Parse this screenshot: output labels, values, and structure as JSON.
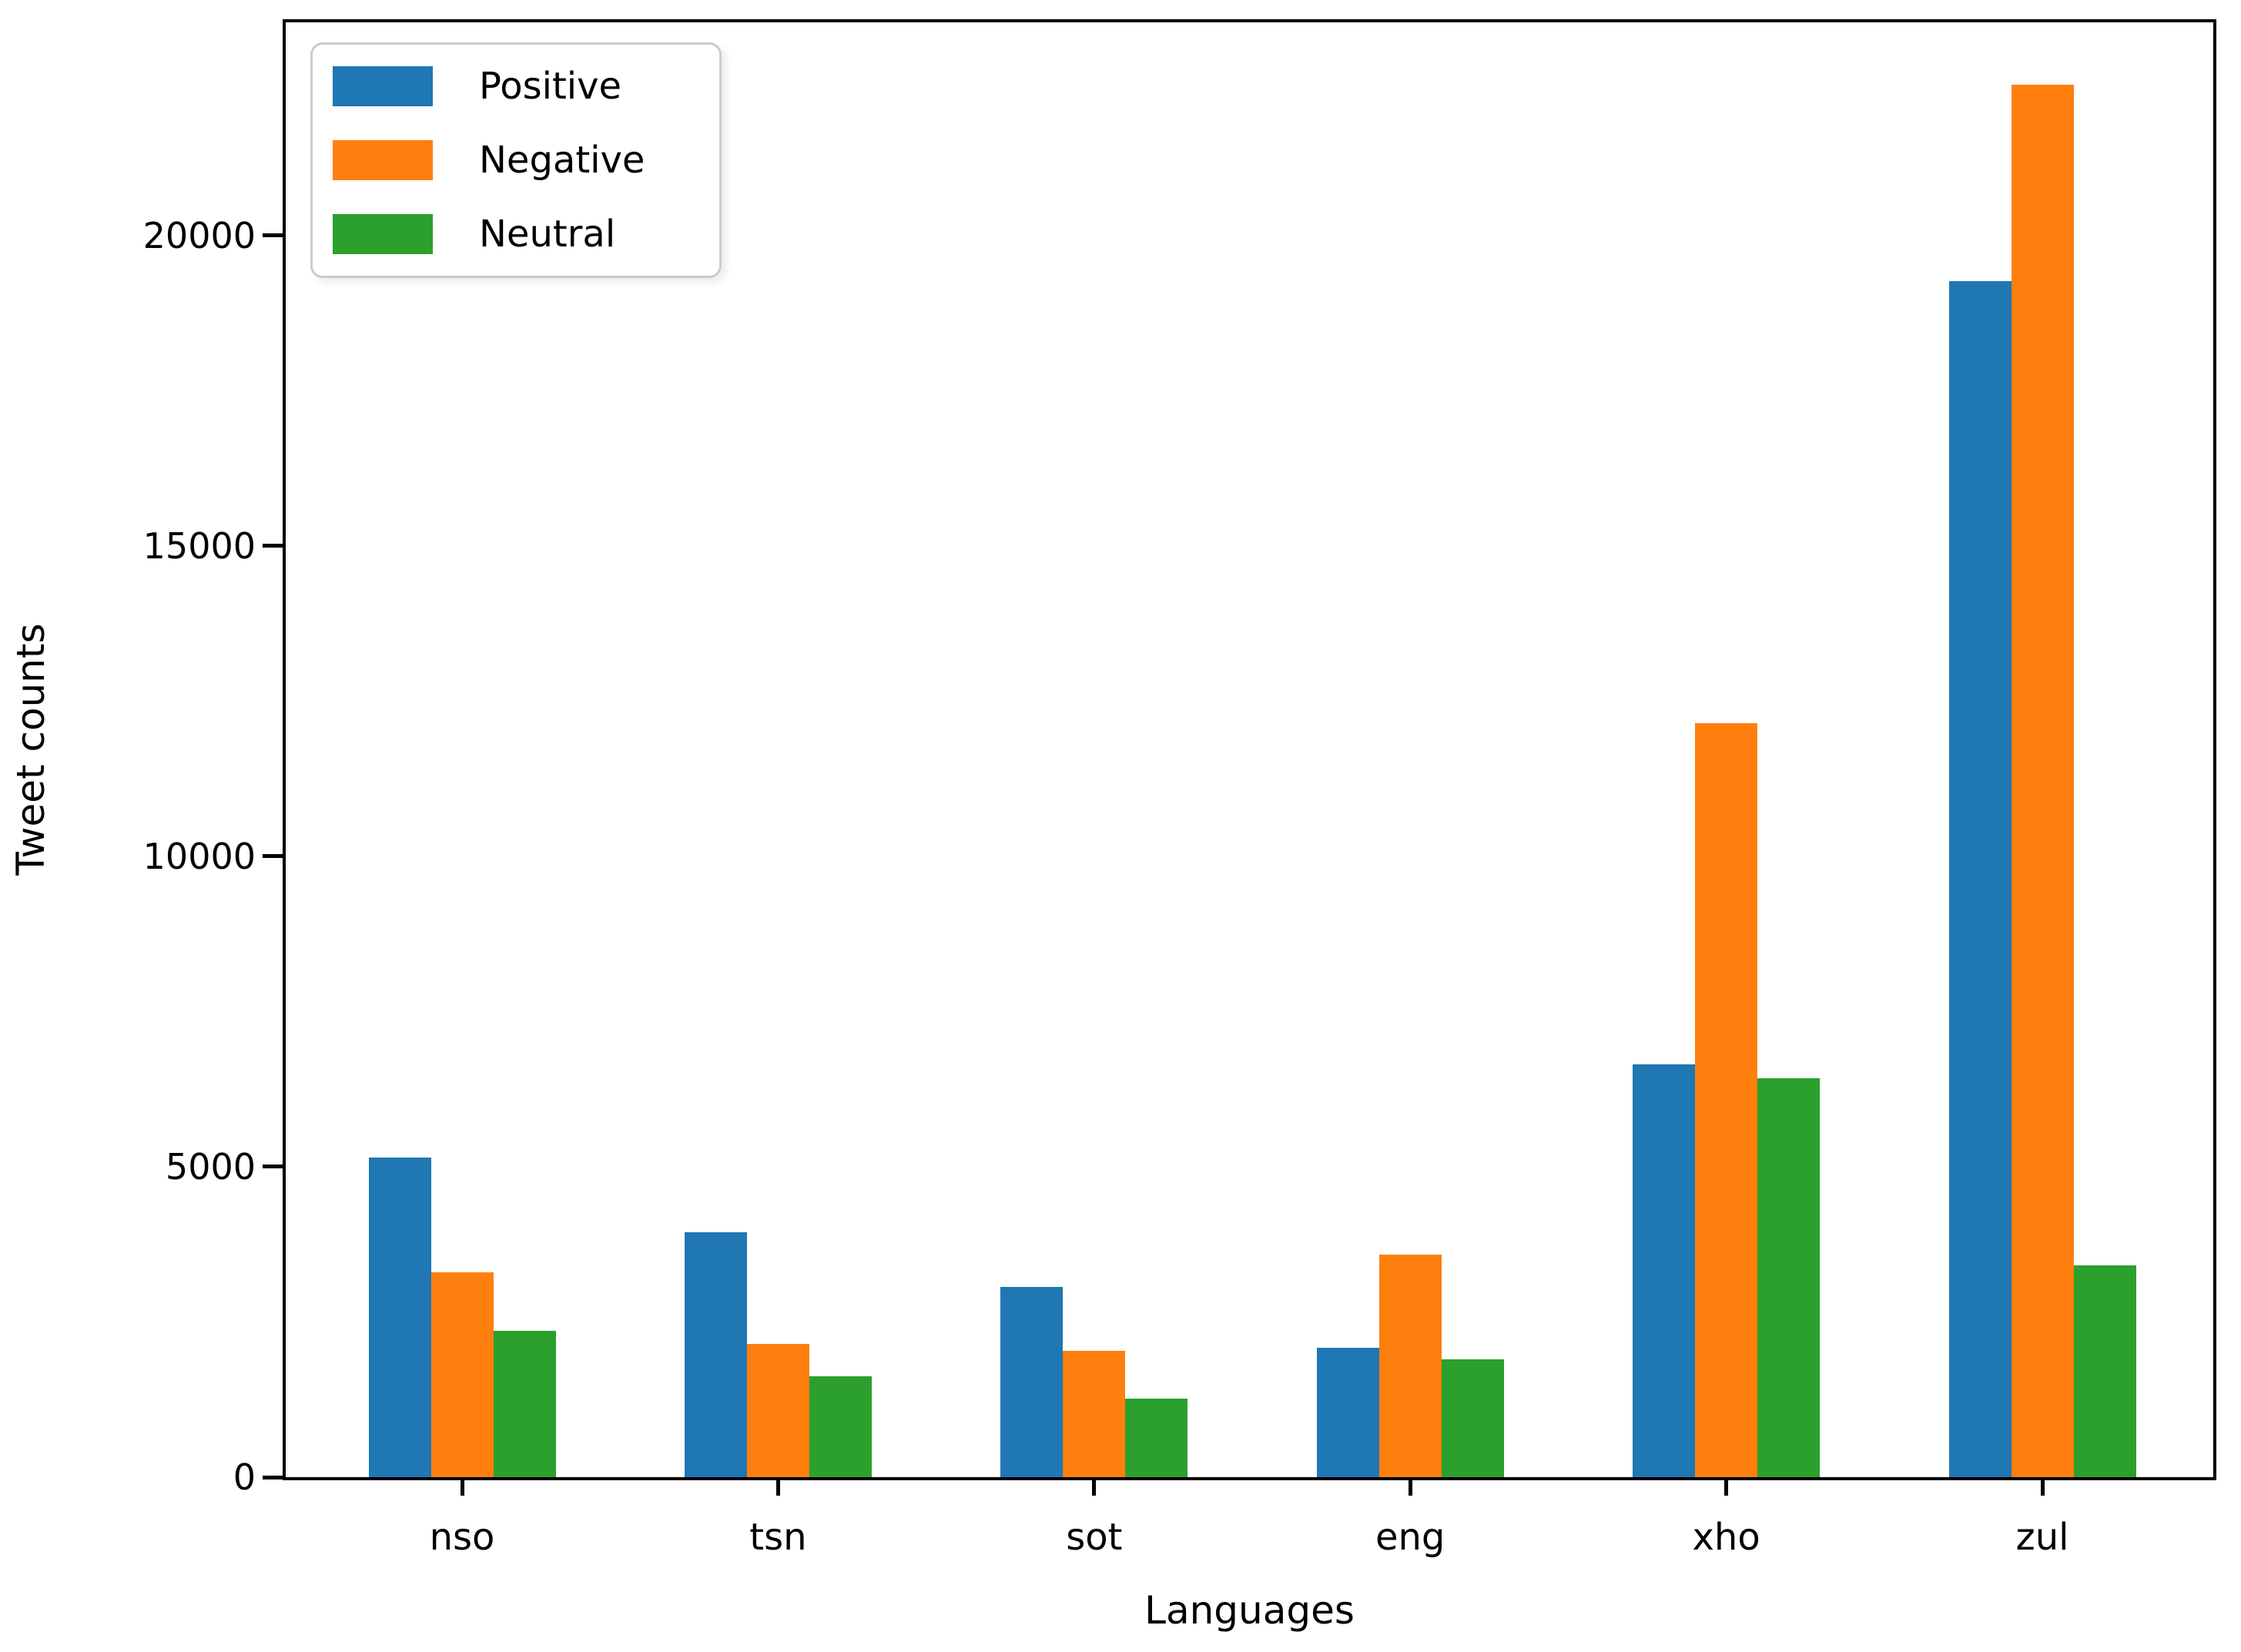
{
  "chart_data": {
    "type": "bar",
    "title": "",
    "xlabel": "Languages",
    "ylabel": "Tweet counts",
    "categories": [
      "nso",
      "tsn",
      "sot",
      "eng",
      "xho",
      "zul"
    ],
    "series": [
      {
        "name": "Positive",
        "color": "#1f77b4",
        "values": [
          5150,
          3940,
          3060,
          2080,
          6650,
          19260
        ]
      },
      {
        "name": "Negative",
        "color": "#ff7f0e",
        "values": [
          3300,
          2140,
          2030,
          3580,
          12140,
          22430
        ]
      },
      {
        "name": "Neutral",
        "color": "#2ca02c",
        "values": [
          2360,
          1620,
          1270,
          1900,
          6420,
          3410
        ]
      }
    ],
    "y_ticks": [
      0,
      5000,
      10000,
      15000,
      20000
    ],
    "ylim": [
      0,
      23430
    ],
    "grid": false,
    "legend_position": "upper-left"
  }
}
